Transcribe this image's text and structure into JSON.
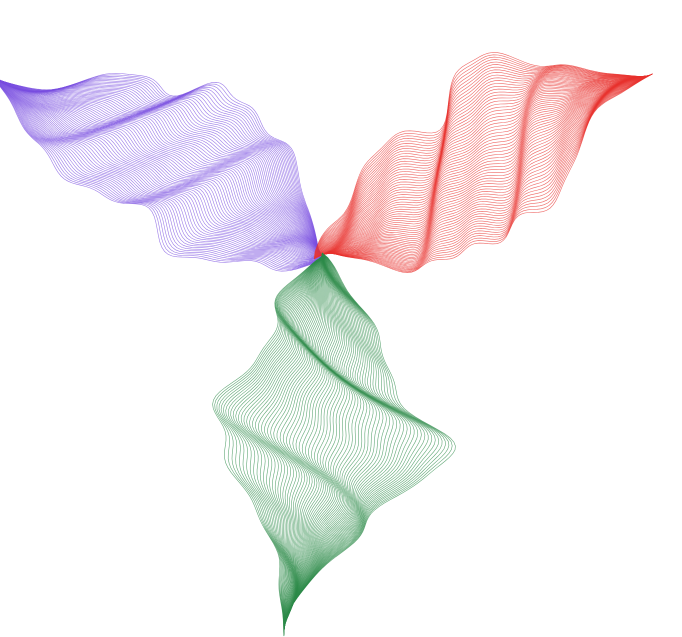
{
  "artwork": {
    "petals": [
      {
        "name": "purple",
        "color": "#7a4fe0"
      },
      {
        "name": "red",
        "color": "#e8332f"
      },
      {
        "name": "green",
        "color": "#2e8b4a"
      }
    ]
  }
}
